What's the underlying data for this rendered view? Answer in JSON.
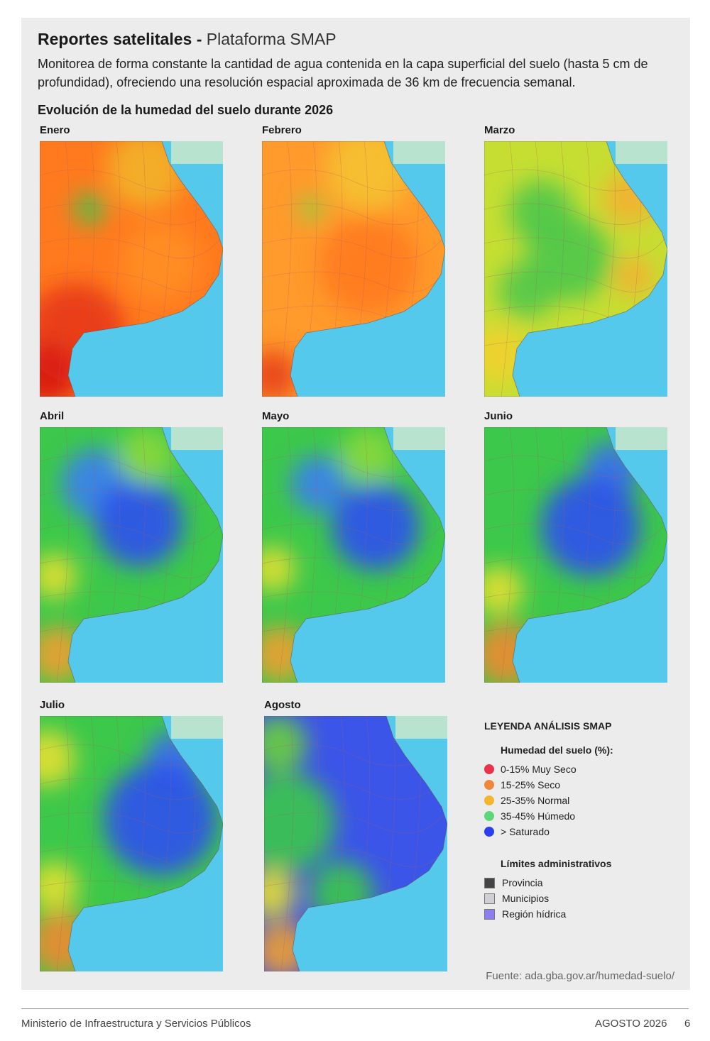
{
  "header": {
    "title": "Reportes satelitales -",
    "platform": "Plataforma SMAP",
    "description": "Monitorea de forma constante la cantidad de agua contenida en la capa superficial del suelo (hasta 5 cm de profundidad), ofreciendo una resolución espacial aproximada de 36 km de frecuencia semanal."
  },
  "section_title": "Evolución de la humedad del suelo durante 2026",
  "maps": [
    {
      "label": "Enero"
    },
    {
      "label": "Febrero"
    },
    {
      "label": "Marzo"
    },
    {
      "label": "Abril"
    },
    {
      "label": "Mayo"
    },
    {
      "label": "Junio"
    },
    {
      "label": "Julio"
    },
    {
      "label": "Agosto"
    }
  ],
  "legend": {
    "title": "LEYENDA ANÁLISIS SMAP",
    "moisture_title": "Humedad del suelo (%):",
    "moisture_items": [
      {
        "label": "0-15% Muy Seco",
        "color": "#e8334a"
      },
      {
        "label": "15-25% Seco",
        "color": "#f0883a"
      },
      {
        "label": "25-35% Normal",
        "color": "#f2b630"
      },
      {
        "label": "35-45% Húmedo",
        "color": "#5ed67a"
      },
      {
        "label": "> Saturado",
        "color": "#2a3ff0"
      }
    ],
    "limits_title": "Límites administrativos",
    "limits_items": [
      {
        "label": "Provincia",
        "color": "#444444"
      },
      {
        "label": "Municipios",
        "color": "#cfcfd6"
      },
      {
        "label": "Región hídrica",
        "color": "#8a7ef0"
      }
    ]
  },
  "source": "Fuente: ada.gba.gov.ar/humedad-suelo/",
  "footer": {
    "ministry": "Ministerio de Infraestructura y Servicios Públicos",
    "date": "AGOSTO 2026",
    "page": "6"
  }
}
